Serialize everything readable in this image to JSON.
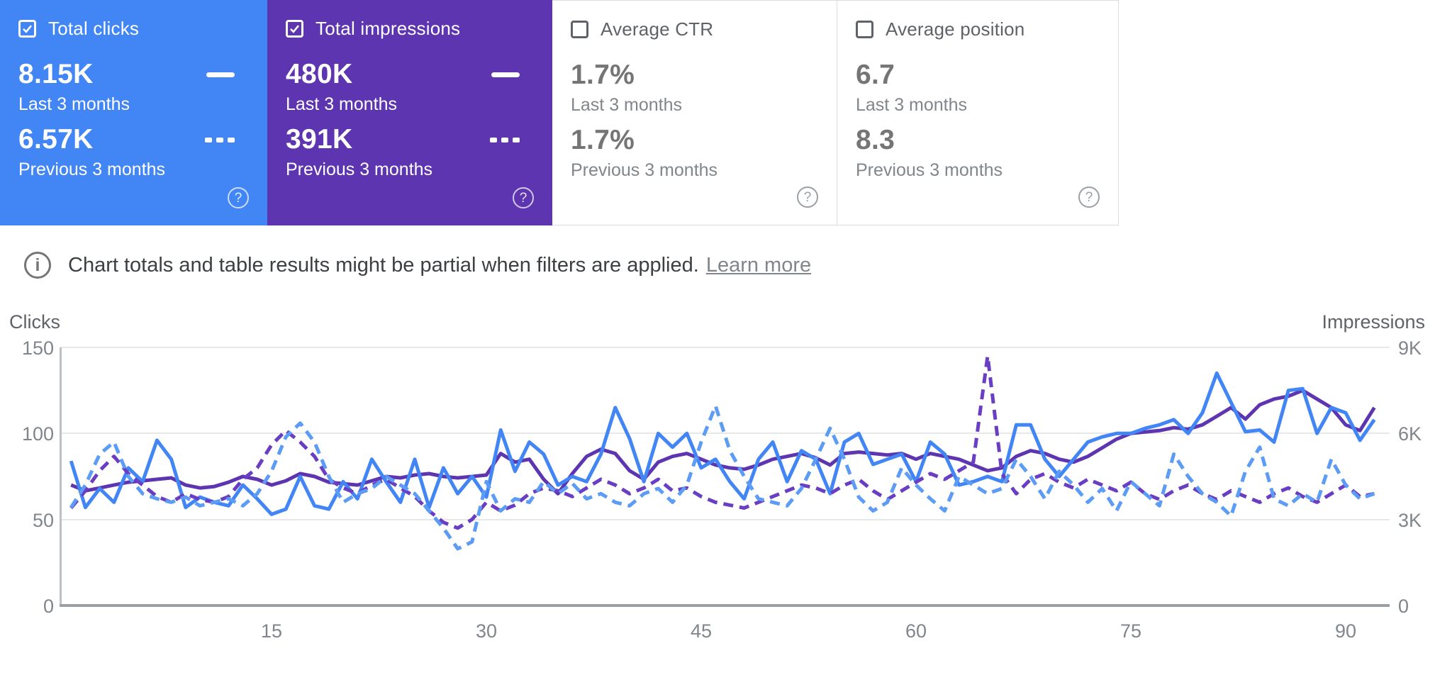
{
  "cards": [
    {
      "label": "Total clicks",
      "checked": true,
      "value_current": "8.15K",
      "period_current": "Last 3 months",
      "value_previous": "6.57K",
      "period_previous": "Previous 3 months",
      "bg": "#4285f4"
    },
    {
      "label": "Total impressions",
      "checked": true,
      "value_current": "480K",
      "period_current": "Last 3 months",
      "value_previous": "391K",
      "period_previous": "Previous 3 months",
      "bg": "#5e35b1"
    },
    {
      "label": "Average CTR",
      "checked": false,
      "value_current": "1.7%",
      "period_current": "Last 3 months",
      "value_previous": "1.7%",
      "period_previous": "Previous 3 months",
      "bg": "#ffffff"
    },
    {
      "label": "Average position",
      "checked": false,
      "value_current": "6.7",
      "period_current": "Last 3 months",
      "value_previous": "8.3",
      "period_previous": "Previous 3 months",
      "bg": "#ffffff"
    }
  ],
  "notice": {
    "text": "Chart totals and table results might be partial when filters are applied.",
    "link_label": "Learn more"
  },
  "icons": {
    "help": "?",
    "info": "i"
  },
  "colors": {
    "clicks_current": "#4285f4",
    "clicks_previous": "#5c9cf5",
    "impressions_current": "#5e35b1",
    "impressions_previous": "#6a3ec2",
    "card_blue": "#4285f4",
    "card_purple": "#5e35b1"
  },
  "chart_data": {
    "type": "line",
    "x_unit": "day of 3-month range",
    "x_ticks": [
      15,
      30,
      45,
      60,
      75,
      90
    ],
    "left_axis": {
      "title": "Clicks",
      "ticks": [
        "0",
        "50",
        "100",
        "150"
      ],
      "max": 150
    },
    "right_axis": {
      "title": "Impressions",
      "ticks": [
        "0",
        "3K",
        "6K",
        "9K"
      ],
      "max": 9,
      "unit": "K"
    },
    "grid": true,
    "legend_position": "none (legend markers shown on metric cards)",
    "series": [
      {
        "id": "impressions-current",
        "name": "Total impressions — Last 3 months",
        "axis": "right",
        "style": "solid",
        "color": "#5e35b1",
        "values": [
          4.2,
          4.0,
          4.1,
          4.2,
          4.3,
          4.35,
          4.4,
          4.45,
          4.2,
          4.1,
          4.15,
          4.3,
          4.5,
          4.4,
          4.2,
          4.35,
          4.6,
          4.5,
          4.3,
          4.25,
          4.2,
          4.35,
          4.5,
          4.45,
          4.55,
          4.6,
          4.5,
          4.45,
          4.5,
          4.55,
          5.3,
          5.0,
          5.1,
          4.4,
          3.9,
          4.6,
          5.2,
          5.45,
          5.3,
          4.7,
          4.4,
          5.0,
          5.2,
          5.3,
          5.1,
          4.9,
          4.8,
          4.75,
          4.9,
          5.1,
          5.2,
          5.3,
          5.15,
          4.9,
          5.3,
          5.35,
          5.3,
          5.25,
          5.3,
          5.1,
          5.3,
          5.2,
          5.1,
          4.9,
          4.7,
          4.8,
          5.2,
          5.4,
          5.3,
          5.1,
          5.0,
          5.2,
          5.5,
          5.8,
          6.0,
          6.05,
          6.1,
          6.2,
          6.15,
          6.3,
          6.6,
          6.9,
          6.5,
          7.0,
          7.2,
          7.3,
          7.5,
          7.2,
          6.9,
          6.3,
          6.1,
          6.9
        ]
      },
      {
        "id": "clicks-current",
        "name": "Total clicks — Last 3 months",
        "axis": "left",
        "style": "solid",
        "color": "#4285f4",
        "values": [
          84,
          57,
          68,
          60,
          80,
          72,
          96,
          85,
          57,
          63,
          60,
          58,
          70,
          62,
          53,
          56,
          75,
          58,
          56,
          72,
          62,
          85,
          72,
          60,
          85,
          57,
          80,
          65,
          75,
          63,
          102,
          78,
          95,
          88,
          70,
          75,
          72,
          88,
          115,
          97,
          72,
          100,
          92,
          100,
          80,
          85,
          72,
          62,
          85,
          95,
          72,
          90,
          85,
          65,
          95,
          100,
          82,
          85,
          88,
          72,
          95,
          88,
          70,
          72,
          75,
          72,
          105,
          105,
          85,
          75,
          85,
          95,
          98,
          100,
          100,
          103,
          105,
          108,
          100,
          112,
          135,
          118,
          101,
          102,
          95,
          125,
          126,
          100,
          115,
          112,
          96,
          108
        ]
      },
      {
        "id": "impressions-previous",
        "name": "Total impressions — Previous 3 months",
        "axis": "right",
        "style": "dashed",
        "color": "#6a3ec2",
        "values": [
          3.4,
          4.0,
          4.7,
          5.2,
          4.6,
          4.2,
          3.8,
          3.6,
          3.9,
          3.7,
          3.6,
          3.8,
          4.4,
          4.8,
          5.6,
          6.1,
          5.7,
          5.2,
          4.4,
          4.1,
          3.9,
          4.2,
          4.4,
          4.1,
          3.8,
          3.3,
          2.9,
          2.7,
          3.0,
          3.6,
          3.3,
          3.5,
          3.9,
          4.1,
          4.0,
          3.8,
          4.1,
          4.4,
          4.2,
          3.9,
          4.1,
          4.4,
          4.0,
          4.1,
          3.8,
          3.6,
          3.5,
          3.4,
          3.6,
          3.8,
          4.0,
          4.2,
          4.1,
          3.9,
          4.2,
          4.4,
          4.0,
          3.7,
          4.0,
          4.3,
          4.6,
          4.4,
          4.7,
          5.0,
          8.7,
          4.6,
          3.9,
          4.4,
          4.6,
          4.3,
          4.1,
          4.4,
          4.2,
          4.0,
          4.3,
          3.9,
          3.7,
          4.0,
          4.2,
          3.9,
          3.7,
          4.0,
          3.8,
          3.6,
          3.9,
          4.1,
          3.8,
          3.6,
          3.9,
          4.2,
          3.8,
          3.9
        ]
      },
      {
        "id": "clicks-previous",
        "name": "Total clicks — Previous 3 months",
        "axis": "left",
        "style": "dashed",
        "color": "#5c9cf5",
        "values": [
          57,
          70,
          88,
          95,
          75,
          65,
          62,
          60,
          63,
          58,
          60,
          62,
          58,
          65,
          78,
          98,
          106,
          95,
          75,
          60,
          65,
          68,
          75,
          70,
          65,
          55,
          45,
          33,
          37,
          72,
          55,
          62,
          60,
          72,
          65,
          71,
          62,
          65,
          60,
          58,
          65,
          68,
          60,
          70,
          95,
          116,
          90,
          75,
          62,
          60,
          58,
          68,
          85,
          103,
          85,
          63,
          55,
          60,
          80,
          70,
          62,
          55,
          75,
          70,
          65,
          68,
          85,
          75,
          62,
          78,
          70,
          60,
          68,
          55,
          72,
          65,
          58,
          88,
          75,
          65,
          60,
          52,
          78,
          92,
          62,
          58,
          65,
          60,
          85,
          70,
          62,
          65
        ]
      }
    ]
  }
}
